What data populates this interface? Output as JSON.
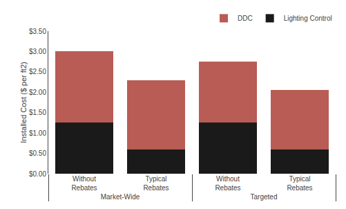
{
  "chart_data": {
    "type": "bar",
    "stacked": true,
    "categories": [
      "Without\nRebates",
      "Typical\nRebates",
      "Without\nRebates",
      "Typical\nRebates"
    ],
    "groups": [
      "Market-Wide",
      "Market-Wide",
      "Targeted",
      "Targeted"
    ],
    "series": [
      {
        "name": "Lighting Control",
        "color": "#1a1a1a",
        "values": [
          1.25,
          0.6,
          1.25,
          0.6
        ]
      },
      {
        "name": "DDC",
        "color": "#b85c55",
        "values": [
          1.75,
          1.7,
          1.5,
          1.45
        ]
      }
    ],
    "ylabel": "Installed Cost ($ per ft2)",
    "ylim": [
      0,
      3.5
    ],
    "yticks": [
      {
        "value": 0.0,
        "label": "$0.00"
      },
      {
        "value": 0.5,
        "label": "$0.50"
      },
      {
        "value": 1.0,
        "label": "$1.00"
      },
      {
        "value": 1.5,
        "label": "$1.50"
      },
      {
        "value": 2.0,
        "label": "$2.00"
      },
      {
        "value": 2.5,
        "label": "$2.50"
      },
      {
        "value": 3.0,
        "label": "$3.00"
      },
      {
        "value": 3.5,
        "label": "$3.50"
      }
    ],
    "grid": false,
    "legend": "upper right"
  }
}
